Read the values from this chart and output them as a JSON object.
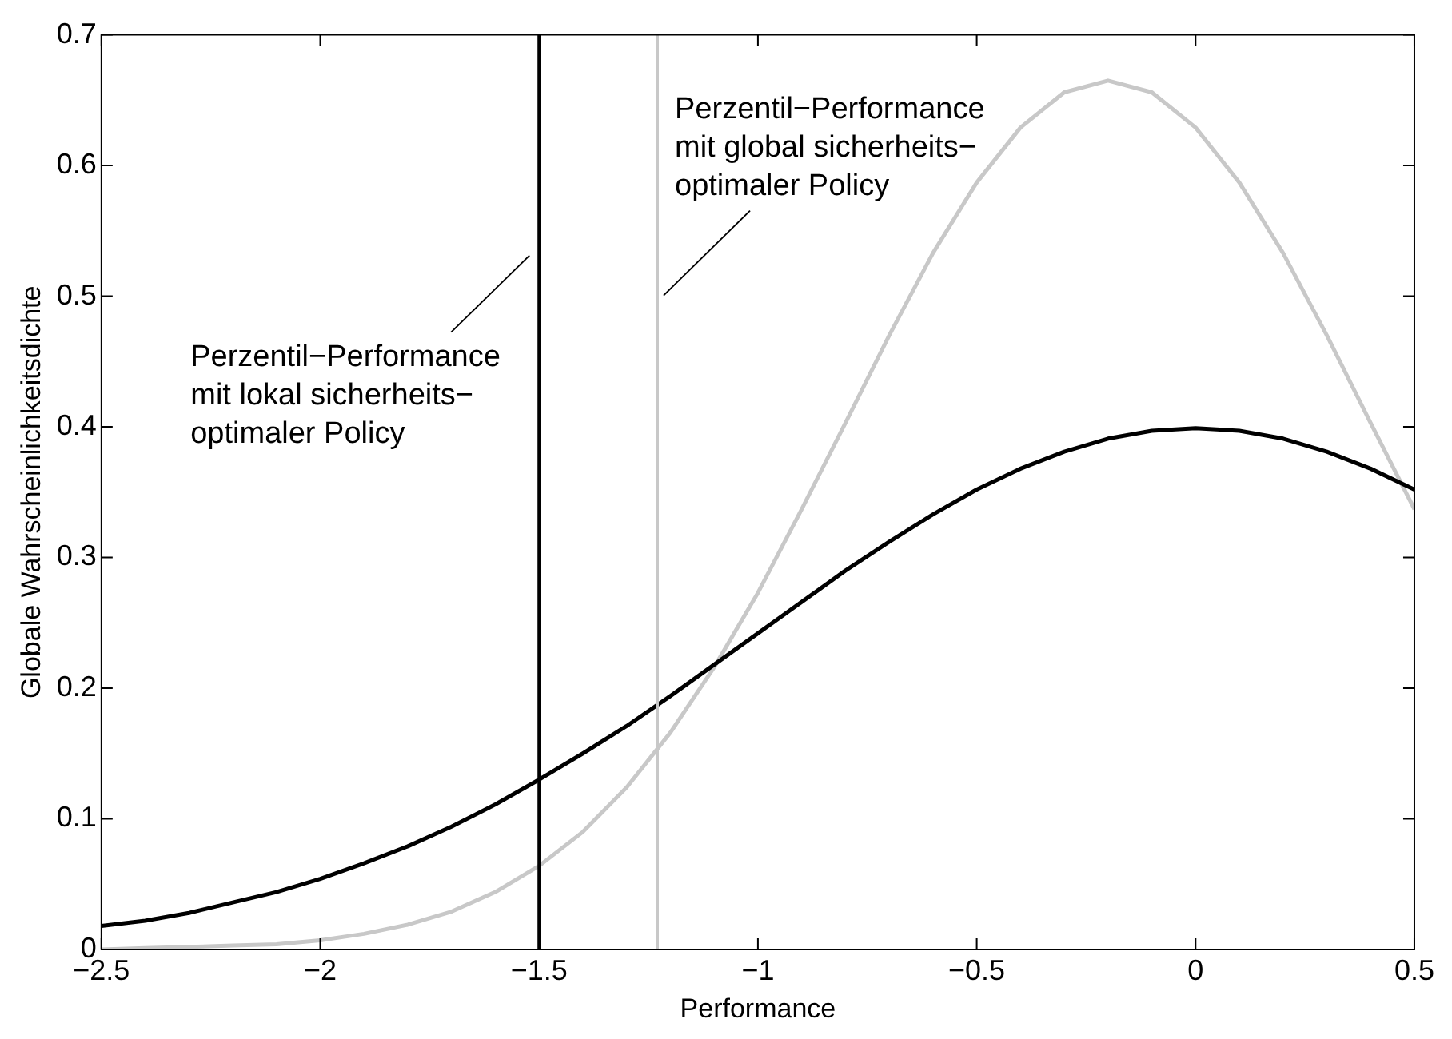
{
  "chart_data": {
    "type": "line",
    "xlabel": "Performance",
    "ylabel": "Globale Wahrscheinlichkeitsdichte",
    "x": [
      -2.5,
      -2.4,
      -2.3,
      -2.2,
      -2.1,
      -2.0,
      -1.9,
      -1.8,
      -1.7,
      -1.6,
      -1.5,
      -1.4,
      -1.3,
      -1.2,
      -1.1,
      -1.0,
      -0.9,
      -0.8,
      -0.7,
      -0.6,
      -0.5,
      -0.4,
      -0.3,
      -0.2,
      -0.1,
      0,
      0.1,
      0.2,
      0.3,
      0.4,
      0.5
    ],
    "series": [
      {
        "color": "#000000",
        "values": [
          0.018,
          0.022,
          0.028,
          0.036,
          0.044,
          0.054,
          0.066,
          0.079,
          0.094,
          0.111,
          0.13,
          0.15,
          0.171,
          0.194,
          0.218,
          0.242,
          0.266,
          0.29,
          0.312,
          0.333,
          0.352,
          0.368,
          0.381,
          0.391,
          0.397,
          0.399,
          0.397,
          0.391,
          0.381,
          0.368,
          0.352
        ]
      },
      {
        "color": "#c8c8c8",
        "values": [
          0,
          0.001,
          0.002,
          0.003,
          0.004,
          0.007,
          0.012,
          0.019,
          0.029,
          0.044,
          0.064,
          0.09,
          0.124,
          0.166,
          0.216,
          0.273,
          0.337,
          0.403,
          0.47,
          0.533,
          0.587,
          0.629,
          0.656,
          0.665,
          0.656,
          0.629,
          0.587,
          0.533,
          0.47,
          0.403,
          0.337
        ]
      }
    ],
    "ref_lines": [
      {
        "axis": "x",
        "value": -1.5,
        "color": "#000000",
        "label": "Perzentil−Performance\nmit lokal sicherheits−\noptimaler Policy"
      },
      {
        "axis": "x",
        "value": -1.23,
        "color": "#c8c8c8",
        "label": "Perzentil−Performance\nmit global sicherheits−\noptimaler Policy"
      }
    ],
    "xlim": [
      -2.5,
      0.5
    ],
    "ylim": [
      0,
      0.7
    ],
    "xticks": [
      {
        "value": -2.5,
        "label": "−2.5"
      },
      {
        "value": -2,
        "label": "−2"
      },
      {
        "value": -1.5,
        "label": "−1.5"
      },
      {
        "value": -1,
        "label": "−1"
      },
      {
        "value": -0.5,
        "label": "−0.5"
      },
      0,
      0.5
    ],
    "yticks": [
      0,
      0.1,
      0.2,
      0.3,
      0.4,
      0.5,
      0.6,
      0.7
    ],
    "grid": false,
    "legend": false,
    "marker": "none",
    "line_style": "solid"
  }
}
